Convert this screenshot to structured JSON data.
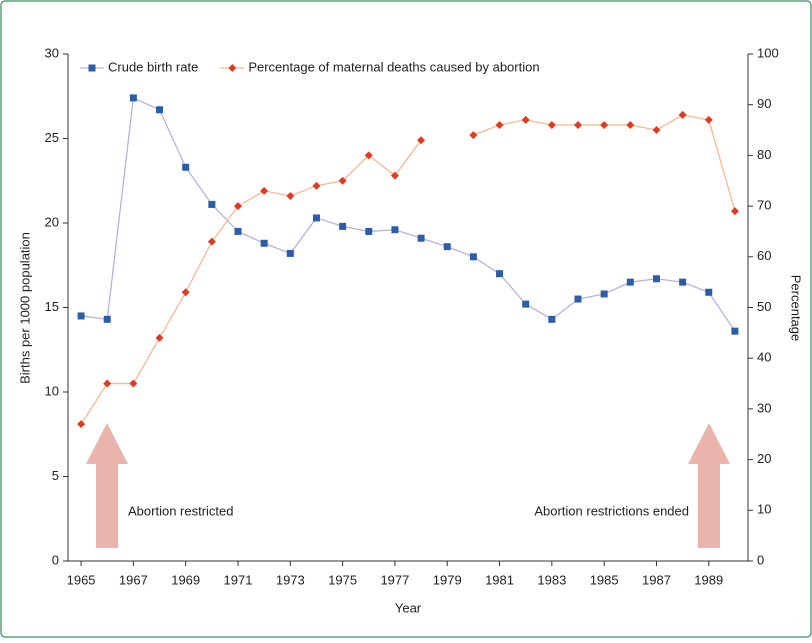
{
  "chart_data": {
    "type": "line",
    "x": [
      1965,
      1966,
      1967,
      1968,
      1969,
      1970,
      1971,
      1972,
      1973,
      1974,
      1975,
      1976,
      1977,
      1978,
      1979,
      1980,
      1981,
      1982,
      1983,
      1984,
      1985,
      1986,
      1987,
      1988,
      1989,
      1990
    ],
    "series": [
      {
        "name": "Crude birth rate",
        "color": "#2b5ea7",
        "line_color": "#b4b4dc",
        "values": [
          14.5,
          14.3,
          27.4,
          26.7,
          23.3,
          21.1,
          19.5,
          18.8,
          18.2,
          20.3,
          19.8,
          19.5,
          19.6,
          19.1,
          18.6,
          18.0,
          17.0,
          15.2,
          14.3,
          15.5,
          15.8,
          16.5,
          16.7,
          16.5,
          15.9,
          13.6
        ]
      },
      {
        "name": "Percentage of maternal deaths caused by abortion",
        "color": "#e03a22",
        "line_color": "#f7b894",
        "axis": "y2",
        "values": [
          27,
          35,
          35,
          44,
          53,
          63,
          70,
          73,
          72,
          74,
          75,
          80,
          76,
          83,
          null,
          84,
          86,
          87,
          86,
          86,
          86,
          86,
          85,
          88,
          87,
          69
        ]
      }
    ],
    "xlabel": "Year",
    "ylabel": "Births per 1000 population",
    "y2label": "Percentage",
    "xlim": [
      1964.5,
      1990.5
    ],
    "xticks": [
      1965,
      1967,
      1969,
      1971,
      1973,
      1975,
      1977,
      1979,
      1981,
      1983,
      1985,
      1987,
      1989
    ],
    "ylim": [
      0,
      30
    ],
    "yticks": [
      0,
      5,
      10,
      15,
      20,
      25,
      30
    ],
    "y2lim": [
      0,
      100
    ],
    "y2ticks": [
      0,
      10,
      20,
      30,
      40,
      50,
      60,
      70,
      80,
      90,
      100
    ],
    "legend": "top-left",
    "annotations": [
      "Abortion restricted",
      "Abortion restrictions ended"
    ]
  }
}
